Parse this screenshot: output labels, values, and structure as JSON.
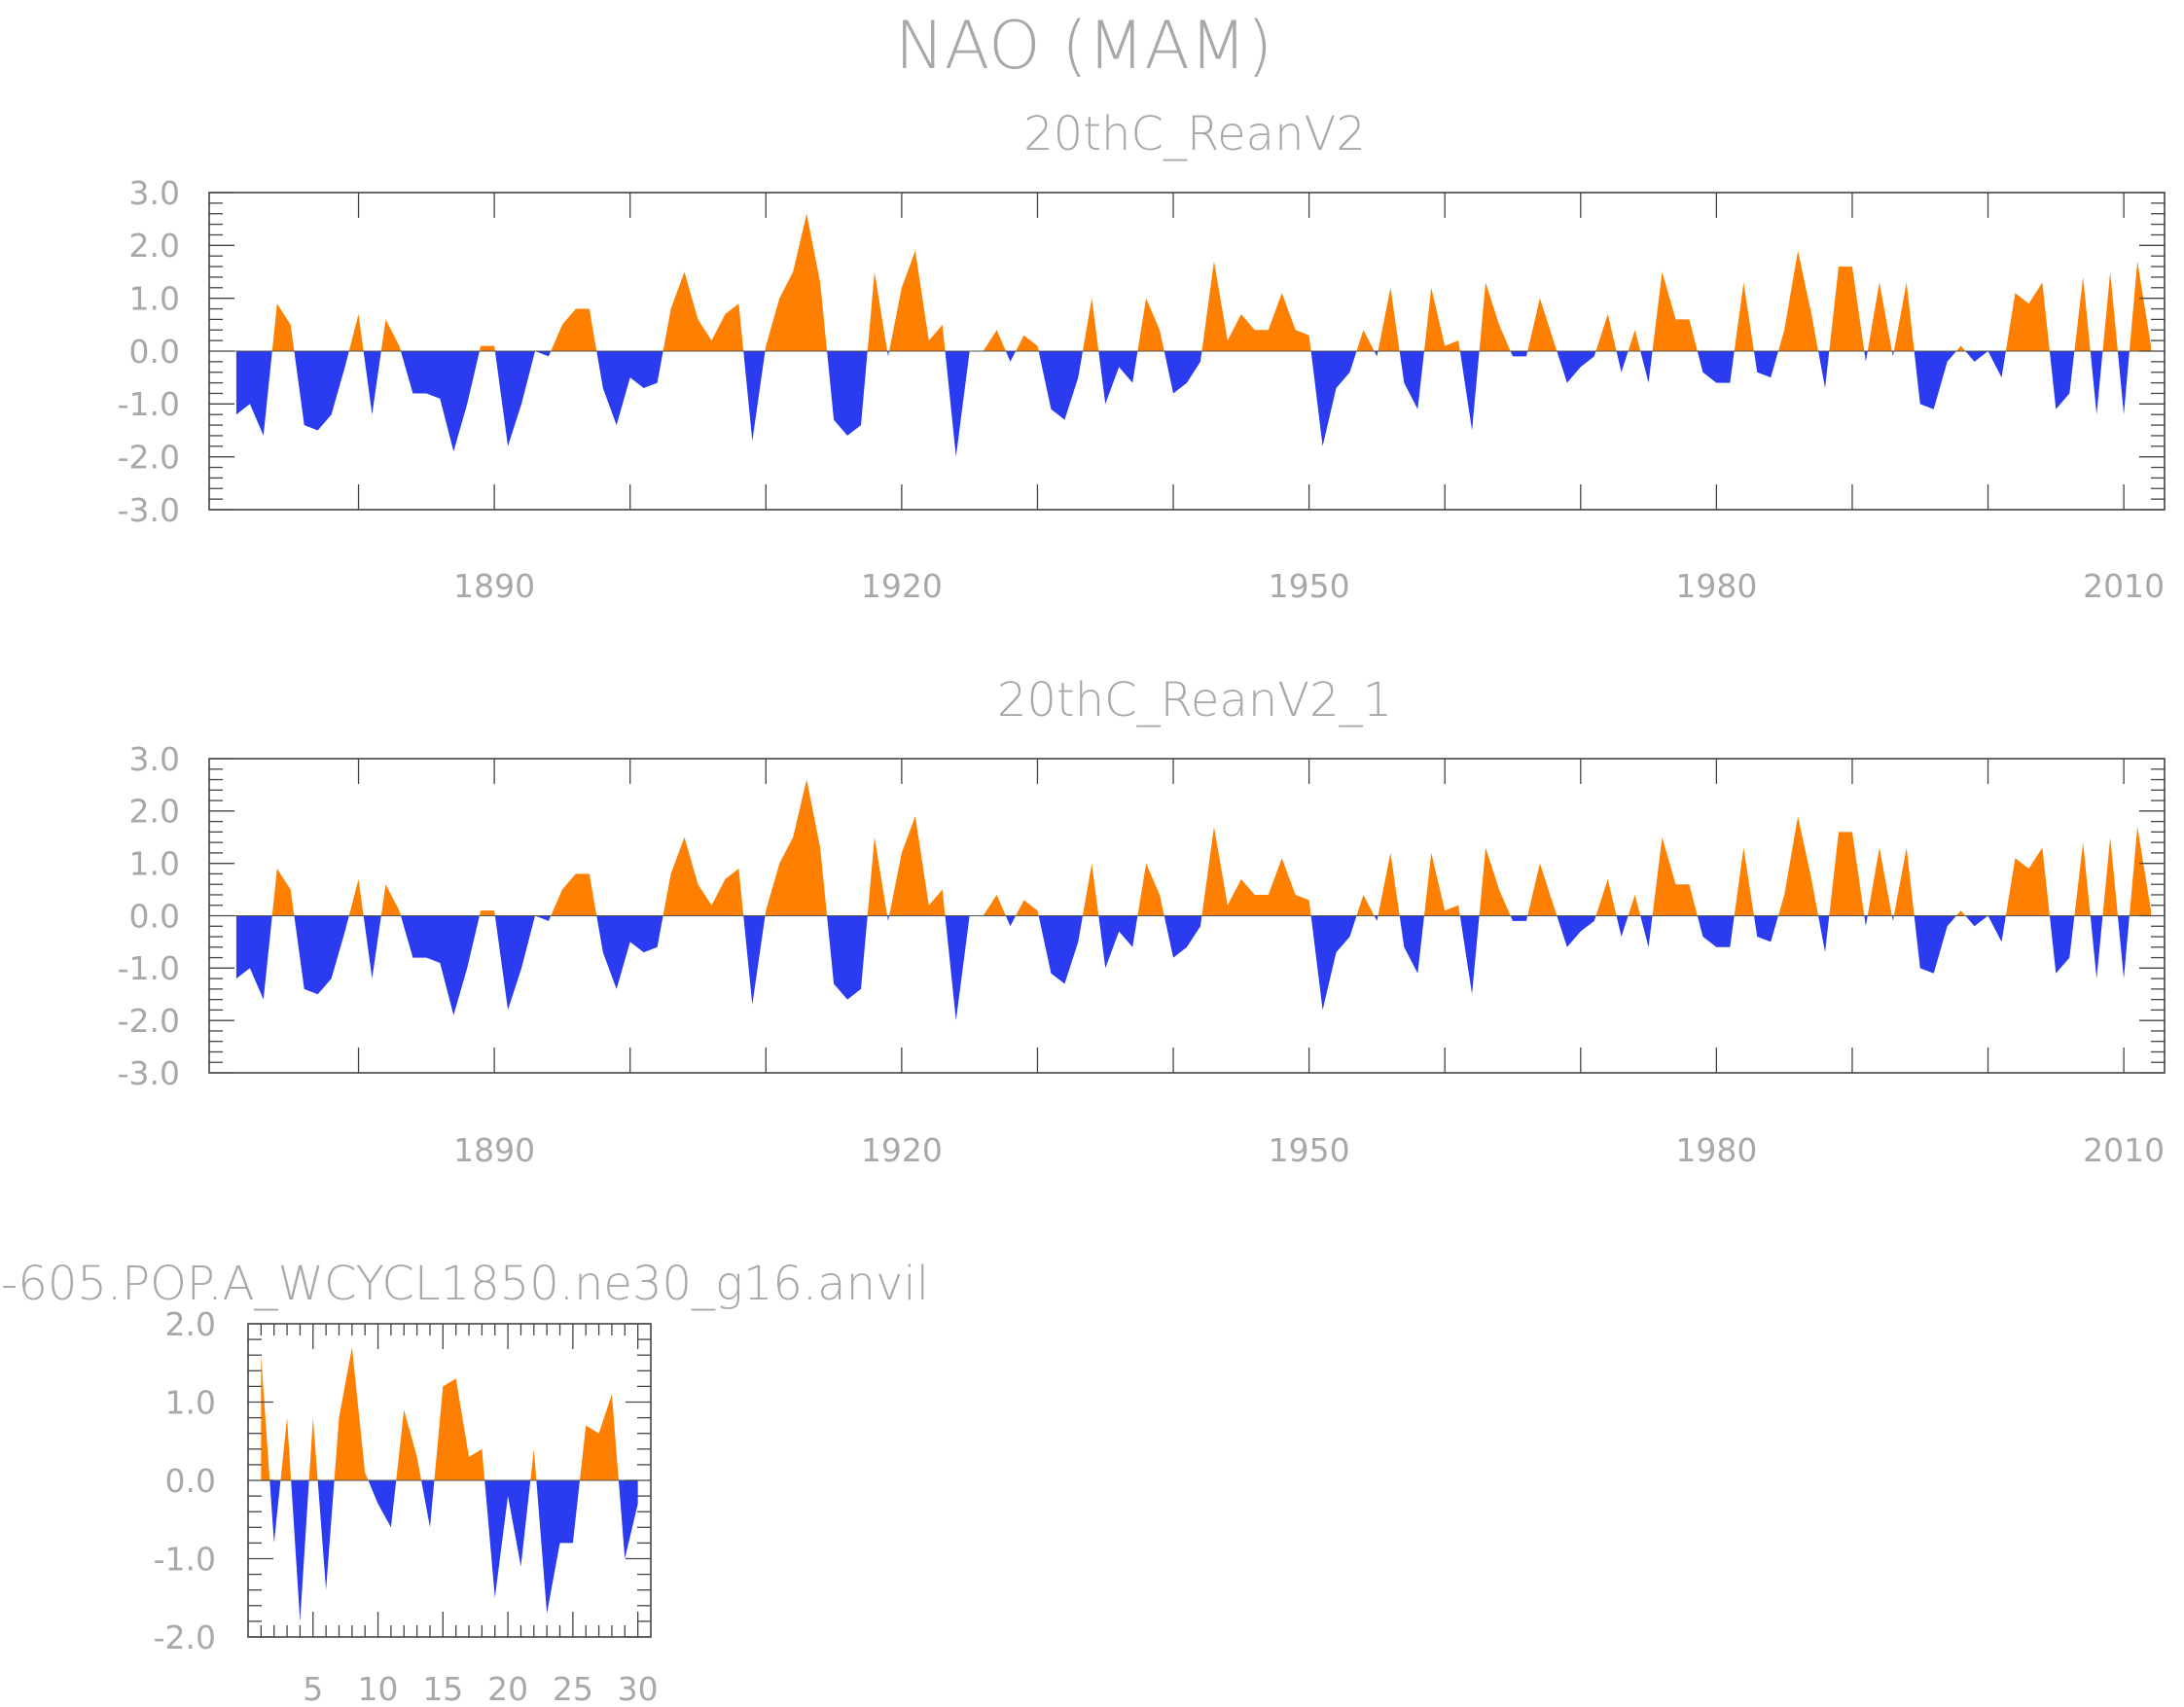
{
  "figure_title": "NAO (MAM)",
  "colors": {
    "positive": "#ff8000",
    "negative": "#2b3cf0",
    "text": "#a8a8a8",
    "axis": "#444444"
  },
  "chart_data": [
    {
      "id": "panel1",
      "type": "area",
      "title": "20thC_ReanV2",
      "x_start": 1871,
      "x_end": 2012,
      "xlim": [
        1869,
        2013
      ],
      "ylim": [
        -3.0,
        3.0
      ],
      "ytick_labels": [
        "3.0",
        "2.0",
        "1.0",
        "0.0",
        "-1.0",
        "-2.0",
        "-3.0"
      ],
      "xtick_labels": [
        "1890",
        "1920",
        "1950",
        "1980",
        "2010"
      ],
      "values": [
        -1.2,
        -1.0,
        -1.6,
        0.9,
        0.5,
        -1.4,
        -1.5,
        -1.2,
        -0.3,
        0.7,
        -1.2,
        0.6,
        0.1,
        -0.8,
        -0.8,
        -0.9,
        -1.9,
        -1.0,
        0.1,
        0.1,
        -1.8,
        -1.0,
        0.0,
        -0.1,
        0.5,
        0.8,
        0.8,
        -0.7,
        -1.4,
        -0.5,
        -0.7,
        -0.6,
        0.8,
        1.5,
        0.6,
        0.2,
        0.7,
        0.9,
        -1.7,
        0.1,
        1.0,
        1.5,
        2.6,
        1.3,
        -1.3,
        -1.6,
        -1.4,
        1.5,
        -0.1,
        1.2,
        1.9,
        0.2,
        0.5,
        -2.0,
        0.0,
        0.0,
        0.4,
        -0.2,
        0.3,
        0.1,
        -1.1,
        -1.3,
        -0.5,
        1.0,
        -1.0,
        -0.3,
        -0.6,
        1.0,
        0.4,
        -0.8,
        -0.6,
        -0.2,
        1.7,
        0.2,
        0.7,
        0.4,
        0.4,
        1.1,
        0.4,
        0.3,
        -1.8,
        -0.7,
        -0.4,
        0.4,
        -0.1,
        1.2,
        -0.6,
        -1.1,
        1.2,
        0.1,
        0.2,
        -1.5,
        1.3,
        0.5,
        -0.1,
        -0.1,
        1.0,
        0.2,
        -0.6,
        -0.3,
        -0.1,
        0.7,
        -0.4,
        0.4,
        -0.6,
        1.5,
        0.6,
        0.6,
        -0.4,
        -0.6,
        -0.6,
        1.3,
        -0.4,
        -0.5,
        0.4,
        1.9,
        0.7,
        -0.7,
        1.6,
        1.6,
        -0.2,
        1.3,
        -0.1,
        1.3,
        -1.0,
        -1.1,
        -0.2,
        0.1,
        -0.2,
        0.0,
        -0.5,
        1.1,
        0.9,
        1.3,
        -1.1,
        -0.8,
        1.4,
        -1.2,
        1.5,
        -1.2,
        1.7,
        0.1
      ]
    },
    {
      "id": "panel2",
      "type": "area",
      "title": "20thC_ReanV2_1",
      "x_start": 1871,
      "x_end": 2012,
      "xlim": [
        1869,
        2013
      ],
      "ylim": [
        -3.0,
        3.0
      ],
      "ytick_labels": [
        "3.0",
        "2.0",
        "1.0",
        "0.0",
        "-1.0",
        "-2.0",
        "-3.0"
      ],
      "xtick_labels": [
        "1890",
        "1920",
        "1950",
        "1980",
        "2010"
      ],
      "values": [
        -1.2,
        -1.0,
        -1.6,
        0.9,
        0.5,
        -1.4,
        -1.5,
        -1.2,
        -0.3,
        0.7,
        -1.2,
        0.6,
        0.1,
        -0.8,
        -0.8,
        -0.9,
        -1.9,
        -1.0,
        0.1,
        0.1,
        -1.8,
        -1.0,
        0.0,
        -0.1,
        0.5,
        0.8,
        0.8,
        -0.7,
        -1.4,
        -0.5,
        -0.7,
        -0.6,
        0.8,
        1.5,
        0.6,
        0.2,
        0.7,
        0.9,
        -1.7,
        0.1,
        1.0,
        1.5,
        2.6,
        1.3,
        -1.3,
        -1.6,
        -1.4,
        1.5,
        -0.1,
        1.2,
        1.9,
        0.2,
        0.5,
        -2.0,
        0.0,
        0.0,
        0.4,
        -0.2,
        0.3,
        0.1,
        -1.1,
        -1.3,
        -0.5,
        1.0,
        -1.0,
        -0.3,
        -0.6,
        1.0,
        0.4,
        -0.8,
        -0.6,
        -0.2,
        1.7,
        0.2,
        0.7,
        0.4,
        0.4,
        1.1,
        0.4,
        0.3,
        -1.8,
        -0.7,
        -0.4,
        0.4,
        -0.1,
        1.2,
        -0.6,
        -1.1,
        1.2,
        0.1,
        0.2,
        -1.5,
        1.3,
        0.5,
        -0.1,
        -0.1,
        1.0,
        0.2,
        -0.6,
        -0.3,
        -0.1,
        0.7,
        -0.4,
        0.4,
        -0.6,
        1.5,
        0.6,
        0.6,
        -0.4,
        -0.6,
        -0.6,
        1.3,
        -0.4,
        -0.5,
        0.4,
        1.9,
        0.7,
        -0.7,
        1.6,
        1.6,
        -0.2,
        1.3,
        -0.1,
        1.3,
        -1.0,
        -1.1,
        -0.2,
        0.1,
        -0.2,
        0.0,
        -0.5,
        1.1,
        0.9,
        1.3,
        -1.1,
        -0.8,
        1.4,
        -1.2,
        1.5,
        -1.2,
        1.7,
        0.1
      ]
    },
    {
      "id": "panel3",
      "type": "area",
      "title": "-605.POP.A_WCYCL1850.ne30_g16.anvil",
      "x_start": 1,
      "x_end": 30,
      "xlim": [
        0,
        31
      ],
      "ylim": [
        -2.0,
        2.0
      ],
      "ytick_labels": [
        "2.0",
        "1.0",
        "0.0",
        "-1.0",
        "-2.0"
      ],
      "xtick_labels": [
        "5",
        "10",
        "15",
        "20",
        "25",
        "30"
      ],
      "values": [
        1.6,
        -0.8,
        0.8,
        -1.8,
        0.8,
        -1.4,
        0.8,
        1.7,
        0.1,
        -0.3,
        -0.6,
        0.9,
        0.3,
        -0.6,
        1.2,
        1.3,
        0.3,
        0.4,
        -1.5,
        -0.2,
        -1.1,
        0.4,
        -1.7,
        -0.8,
        -0.8,
        0.7,
        0.6,
        1.1,
        -1.0,
        -0.3
      ]
    }
  ]
}
